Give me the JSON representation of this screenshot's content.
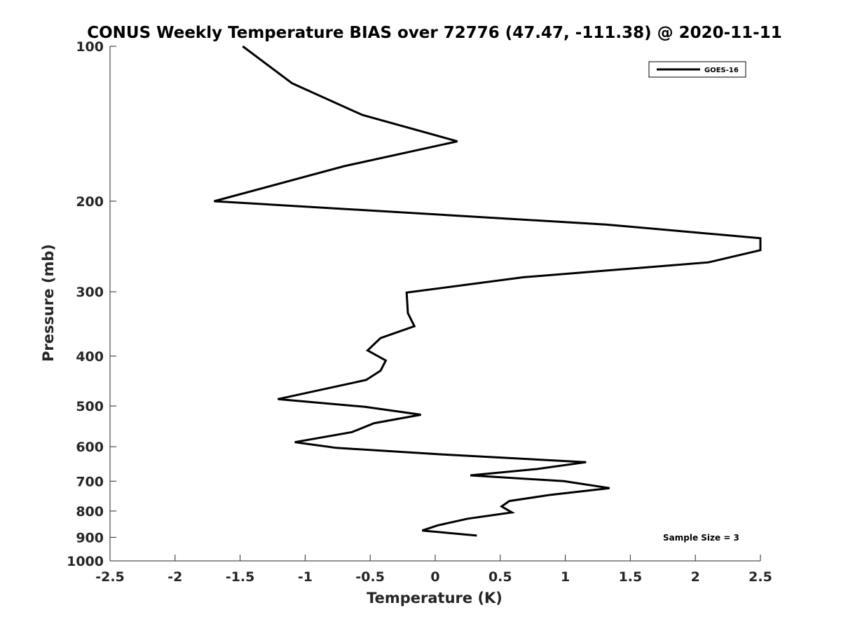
{
  "chart_data": {
    "type": "line",
    "title": "CONUS Weekly Temperature BIAS over 72776 (47.47, -111.38) @ 2020-11-11",
    "xlabel": "Temperature (K)",
    "ylabel": "Pressure (mb)",
    "xlim": [
      -2.5,
      2.5
    ],
    "ylim": [
      1000,
      100
    ],
    "y_scale": "log",
    "x_ticks": [
      -2.5,
      -2,
      -1.5,
      -1,
      -0.5,
      0,
      0.5,
      1,
      1.5,
      2,
      2.5
    ],
    "y_ticks": [
      100,
      200,
      300,
      400,
      500,
      600,
      700,
      800,
      900,
      1000
    ],
    "grid": false,
    "legend_position": "top-right",
    "series": [
      {
        "name": "GOES-16",
        "color": "#000000",
        "points": [
          {
            "x": -1.48,
            "p": 100
          },
          {
            "x": -1.1,
            "p": 118
          },
          {
            "x": -0.56,
            "p": 136
          },
          {
            "x": 0.17,
            "p": 153
          },
          {
            "x": -0.7,
            "p": 171
          },
          {
            "x": -1.7,
            "p": 200
          },
          {
            "x": 1.31,
            "p": 222
          },
          {
            "x": 2.5,
            "p": 236
          },
          {
            "x": 2.5,
            "p": 249
          },
          {
            "x": 2.1,
            "p": 263
          },
          {
            "x": 0.68,
            "p": 281
          },
          {
            "x": -0.22,
            "p": 301
          },
          {
            "x": -0.21,
            "p": 330
          },
          {
            "x": -0.16,
            "p": 350
          },
          {
            "x": -0.42,
            "p": 369
          },
          {
            "x": -0.52,
            "p": 390
          },
          {
            "x": -0.38,
            "p": 408
          },
          {
            "x": -0.42,
            "p": 427
          },
          {
            "x": -0.53,
            "p": 445
          },
          {
            "x": -1.21,
            "p": 485
          },
          {
            "x": -0.54,
            "p": 502
          },
          {
            "x": -0.11,
            "p": 520
          },
          {
            "x": -0.47,
            "p": 540
          },
          {
            "x": -0.64,
            "p": 562
          },
          {
            "x": -1.08,
            "p": 588
          },
          {
            "x": -0.76,
            "p": 603
          },
          {
            "x": 0.05,
            "p": 621
          },
          {
            "x": 1.16,
            "p": 643
          },
          {
            "x": 0.78,
            "p": 663
          },
          {
            "x": 0.27,
            "p": 682
          },
          {
            "x": 0.99,
            "p": 700
          },
          {
            "x": 1.34,
            "p": 722
          },
          {
            "x": 0.89,
            "p": 744
          },
          {
            "x": 0.57,
            "p": 765
          },
          {
            "x": 0.51,
            "p": 784
          },
          {
            "x": 0.59,
            "p": 805
          },
          {
            "x": 0.25,
            "p": 828
          },
          {
            "x": 0.02,
            "p": 853
          },
          {
            "x": -0.1,
            "p": 873
          },
          {
            "x": 0.32,
            "p": 893
          }
        ]
      }
    ],
    "annotations": [
      "Sample Size = 3"
    ]
  }
}
